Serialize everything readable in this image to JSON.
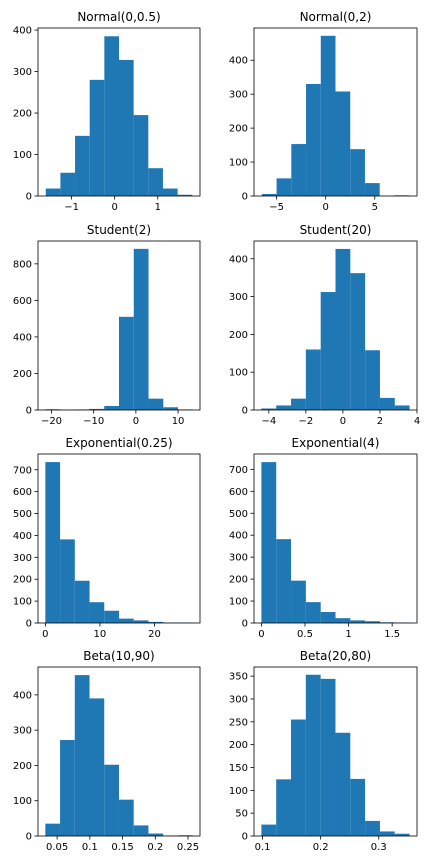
{
  "chart_data": [
    {
      "type": "bar",
      "title": "Normal(0,0.5)",
      "color": "#1f77b4",
      "bin_edges": [
        -1.6,
        -1.26,
        -0.92,
        -0.58,
        -0.24,
        0.1,
        0.44,
        0.78,
        1.12,
        1.46,
        1.8
      ],
      "values": [
        18,
        56,
        145,
        280,
        385,
        328,
        195,
        67,
        18,
        3
      ],
      "xlim": [
        -1.78,
        1.98
      ],
      "ylim": [
        0,
        405
      ],
      "xticks": [
        -1,
        0,
        1
      ],
      "yticks": [
        0,
        100,
        200,
        300,
        400
      ]
    },
    {
      "type": "bar",
      "title": "Normal(0,2)",
      "color": "#1f77b4",
      "bin_edges": [
        -6.5,
        -5,
        -3.5,
        -2,
        -0.5,
        1,
        2.5,
        4,
        5.5,
        7,
        8.5
      ],
      "values": [
        6,
        52,
        153,
        330,
        472,
        308,
        138,
        38,
        0,
        2
      ],
      "xlim": [
        -7.3,
        9.3
      ],
      "ylim": [
        0,
        495
      ],
      "xticks": [
        -5,
        0,
        5
      ],
      "yticks": [
        0,
        100,
        200,
        300,
        400
      ]
    },
    {
      "type": "bar",
      "title": "Student(2)",
      "color": "#1f77b4",
      "bin_edges": [
        -21.5,
        -18,
        -14.5,
        -11,
        -7.5,
        -4,
        -0.5,
        3,
        6.5,
        10,
        13.5
      ],
      "values": [
        4,
        1,
        3,
        6,
        22,
        510,
        882,
        62,
        15,
        3
      ],
      "xlim": [
        -23.2,
        15.2
      ],
      "ylim": [
        0,
        925
      ],
      "xticks": [
        -20,
        -10,
        0,
        10
      ],
      "yticks": [
        0,
        200,
        400,
        600,
        800
      ]
    },
    {
      "type": "bar",
      "title": "Student(20)",
      "color": "#1f77b4",
      "bin_edges": [
        -4.4,
        -3.6,
        -2.8,
        -2,
        -1.2,
        -0.4,
        0.4,
        1.2,
        2,
        2.8,
        3.6
      ],
      "values": [
        4,
        12,
        30,
        160,
        312,
        426,
        362,
        158,
        32,
        12
      ],
      "xlim": [
        -4.8,
        4.0
      ],
      "ylim": [
        0,
        447
      ],
      "xticks": [
        -4,
        -2,
        0,
        2,
        4
      ],
      "yticks": [
        0,
        100,
        200,
        300,
        400
      ]
    },
    {
      "type": "bar",
      "title": "Exponential(0.25)",
      "color": "#1f77b4",
      "bin_edges": [
        0,
        2.7,
        5.4,
        8.1,
        10.8,
        13.5,
        16.2,
        18.9,
        21.6,
        24.3,
        27
      ],
      "values": [
        735,
        382,
        193,
        95,
        56,
        20,
        12,
        5,
        2,
        2
      ],
      "xlim": [
        -1.35,
        28.35
      ],
      "ylim": [
        0,
        772
      ],
      "xticks": [
        0,
        10,
        20
      ],
      "yticks": [
        0,
        100,
        200,
        300,
        400,
        500,
        600,
        700
      ]
    },
    {
      "type": "bar",
      "title": "Exponential(4)",
      "color": "#1f77b4",
      "bin_edges": [
        0,
        0.17,
        0.34,
        0.51,
        0.68,
        0.85,
        1.02,
        1.19,
        1.36,
        1.53,
        1.7
      ],
      "values": [
        733,
        382,
        193,
        95,
        50,
        22,
        12,
        8,
        3,
        2
      ],
      "xlim": [
        -0.085,
        1.785
      ],
      "ylim": [
        0,
        770
      ],
      "xticks": [
        0,
        0.5,
        1,
        1.5
      ],
      "yticks": [
        0,
        100,
        200,
        300,
        400,
        500,
        600,
        700
      ]
    },
    {
      "type": "bar",
      "title": "Beta(10,90)",
      "color": "#1f77b4",
      "bin_edges": [
        0.032,
        0.0545,
        0.077,
        0.0995,
        0.122,
        0.1445,
        0.167,
        0.1895,
        0.212,
        0.2345,
        0.257
      ],
      "values": [
        35,
        272,
        456,
        390,
        202,
        103,
        30,
        7,
        1,
        2
      ],
      "xlim": [
        0.0208,
        0.2683
      ],
      "ylim": [
        0,
        479
      ],
      "xticks": [
        0.05,
        0.1,
        0.15,
        0.2,
        0.25
      ],
      "yticks": [
        0,
        100,
        200,
        300,
        400
      ]
    },
    {
      "type": "bar",
      "title": "Beta(20,80)",
      "color": "#1f77b4",
      "bin_edges": [
        0.098,
        0.1235,
        0.149,
        0.1745,
        0.2,
        0.2255,
        0.251,
        0.2765,
        0.302,
        0.3275,
        0.353
      ],
      "values": [
        25,
        124,
        255,
        353,
        344,
        226,
        125,
        33,
        10,
        5
      ],
      "xlim": [
        0.0853,
        0.3658
      ],
      "ylim": [
        0,
        370
      ],
      "xticks": [
        0.1,
        0.2,
        0.3
      ],
      "yticks": [
        0,
        50,
        100,
        150,
        200,
        250,
        300,
        350
      ]
    }
  ]
}
